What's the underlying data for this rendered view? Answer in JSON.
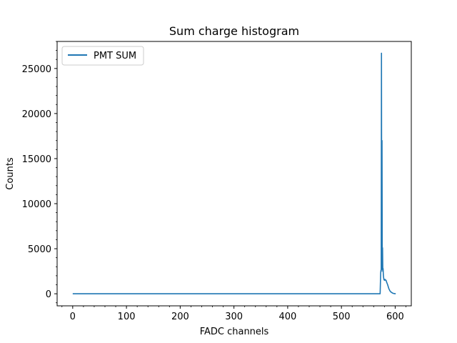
{
  "chart_data": {
    "type": "line",
    "title": "Sum charge histogram",
    "xlabel": "FADC channels",
    "ylabel": "Counts",
    "xlim": [
      -29,
      630
    ],
    "ylim": [
      -1340,
      28000
    ],
    "xticks": [
      0,
      100,
      200,
      300,
      400,
      500,
      600
    ],
    "yticks": [
      0,
      5000,
      10000,
      15000,
      20000,
      25000
    ],
    "grid": false,
    "legend_position": "upper left",
    "series": [
      {
        "name": "PMT SUM",
        "color": "#1f77b4",
        "x": [
          0,
          100,
          200,
          300,
          400,
          500,
          572,
          573,
          573.5,
          574,
          574.5,
          575,
          575.5,
          576,
          576.5,
          577,
          577.5,
          578,
          578.5,
          579,
          580,
          581,
          582,
          583,
          584,
          586,
          588,
          590,
          592,
          595,
          598,
          601
        ],
        "y": [
          0,
          0,
          0,
          0,
          0,
          0,
          0,
          2300,
          2600,
          2500,
          26700,
          2700,
          17000,
          2700,
          5100,
          2500,
          2800,
          2100,
          1800,
          1600,
          1500,
          1600,
          1500,
          1500,
          1300,
          1000,
          600,
          350,
          200,
          80,
          20,
          0
        ]
      }
    ]
  }
}
